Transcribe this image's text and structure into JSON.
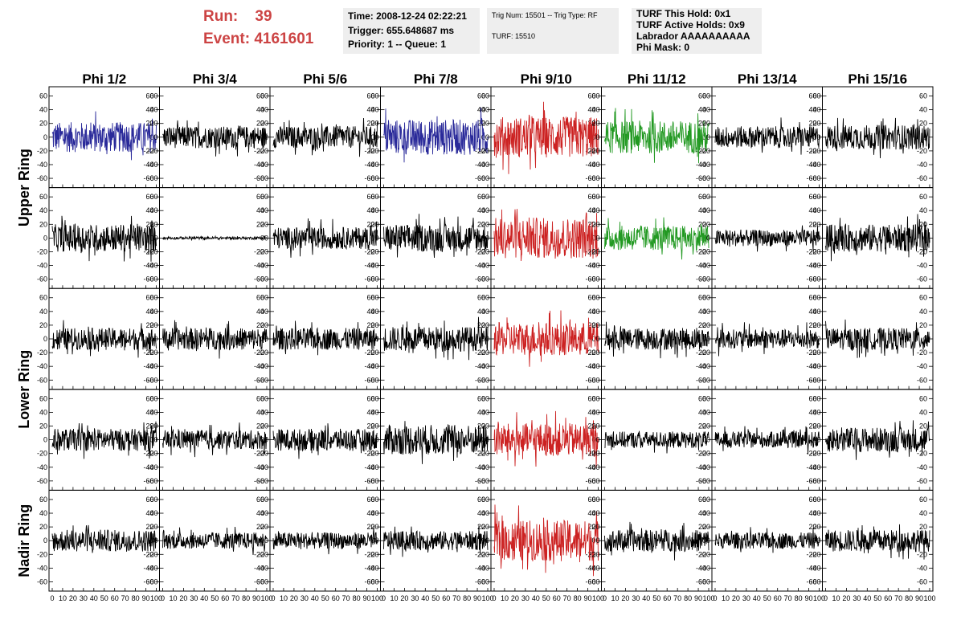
{
  "header": {
    "run_label": "Run:",
    "run_value": "39",
    "event_label": "Event:",
    "event_value": "4161601"
  },
  "info_box_1": {
    "time": "Time: 2008-12-24 02:22:21",
    "trigger": "Trigger: 655.648687 ms",
    "priority": "Priority: 1 -- Queue: 1"
  },
  "info_box_2": {
    "trig": "Trig Num: 15501 -- Trig Type: RF",
    "turf": "TURF: 15510"
  },
  "info_box_3": {
    "this_hold": "TURF This Hold: 0x1",
    "active_holds": "TURF Active Holds: 0x9",
    "labrador": "Labrador AAAAAAAAAA",
    "phi_mask": "Phi Mask: 0"
  },
  "columns": [
    "Phi 1/2",
    "Phi 3/4",
    "Phi 5/6",
    "Phi 7/8",
    "Phi 9/10",
    "Phi 11/12",
    "Phi 13/14",
    "Phi 15/16"
  ],
  "rows": [
    "Upper Ring",
    "",
    "Lower Ring",
    "",
    "Nadir Ring"
  ],
  "colors": {
    "run_text": "#cc4444",
    "info_bg": "#eeeeee",
    "trace_default": "#000000",
    "trace_blue": "#2a2a9a",
    "trace_red": "#cc2222",
    "trace_green": "#229922"
  },
  "chart_data": {
    "type": "line",
    "xlim": [
      0,
      100
    ],
    "ylim": [
      -70,
      70
    ],
    "x_ticks": [
      0,
      10,
      20,
      30,
      40,
      50,
      60,
      70,
      80,
      90,
      100
    ],
    "x_tick_labels": [
      "0",
      "10",
      "20",
      "30",
      "40",
      "50",
      "60",
      "70",
      "80",
      "90",
      "100"
    ],
    "y_ticks": [
      -60,
      -40,
      -20,
      0,
      20,
      40,
      60
    ],
    "y_tick_labels": [
      "-60",
      "-40",
      "-20",
      "0",
      "20",
      "40",
      "60"
    ],
    "panel_colors": [
      [
        "blue",
        "black",
        "black",
        "blue",
        "red",
        "green",
        "black",
        "black"
      ],
      [
        "black",
        "black",
        "black",
        "black",
        "red",
        "green",
        "black",
        "black"
      ],
      [
        "black",
        "black",
        "black",
        "black",
        "red",
        "black",
        "black",
        "black"
      ],
      [
        "black",
        "black",
        "black",
        "black",
        "red",
        "black",
        "black",
        "black"
      ],
      [
        "black",
        "black",
        "black",
        "black",
        "red",
        "black",
        "black",
        "black"
      ]
    ],
    "panel_amplitudes": [
      [
        22,
        16,
        16,
        26,
        30,
        24,
        16,
        18
      ],
      [
        20,
        2,
        16,
        20,
        30,
        18,
        12,
        20
      ],
      [
        16,
        16,
        16,
        18,
        24,
        16,
        14,
        16
      ],
      [
        16,
        14,
        16,
        22,
        24,
        12,
        12,
        18
      ],
      [
        16,
        12,
        12,
        14,
        30,
        16,
        12,
        16
      ]
    ]
  }
}
